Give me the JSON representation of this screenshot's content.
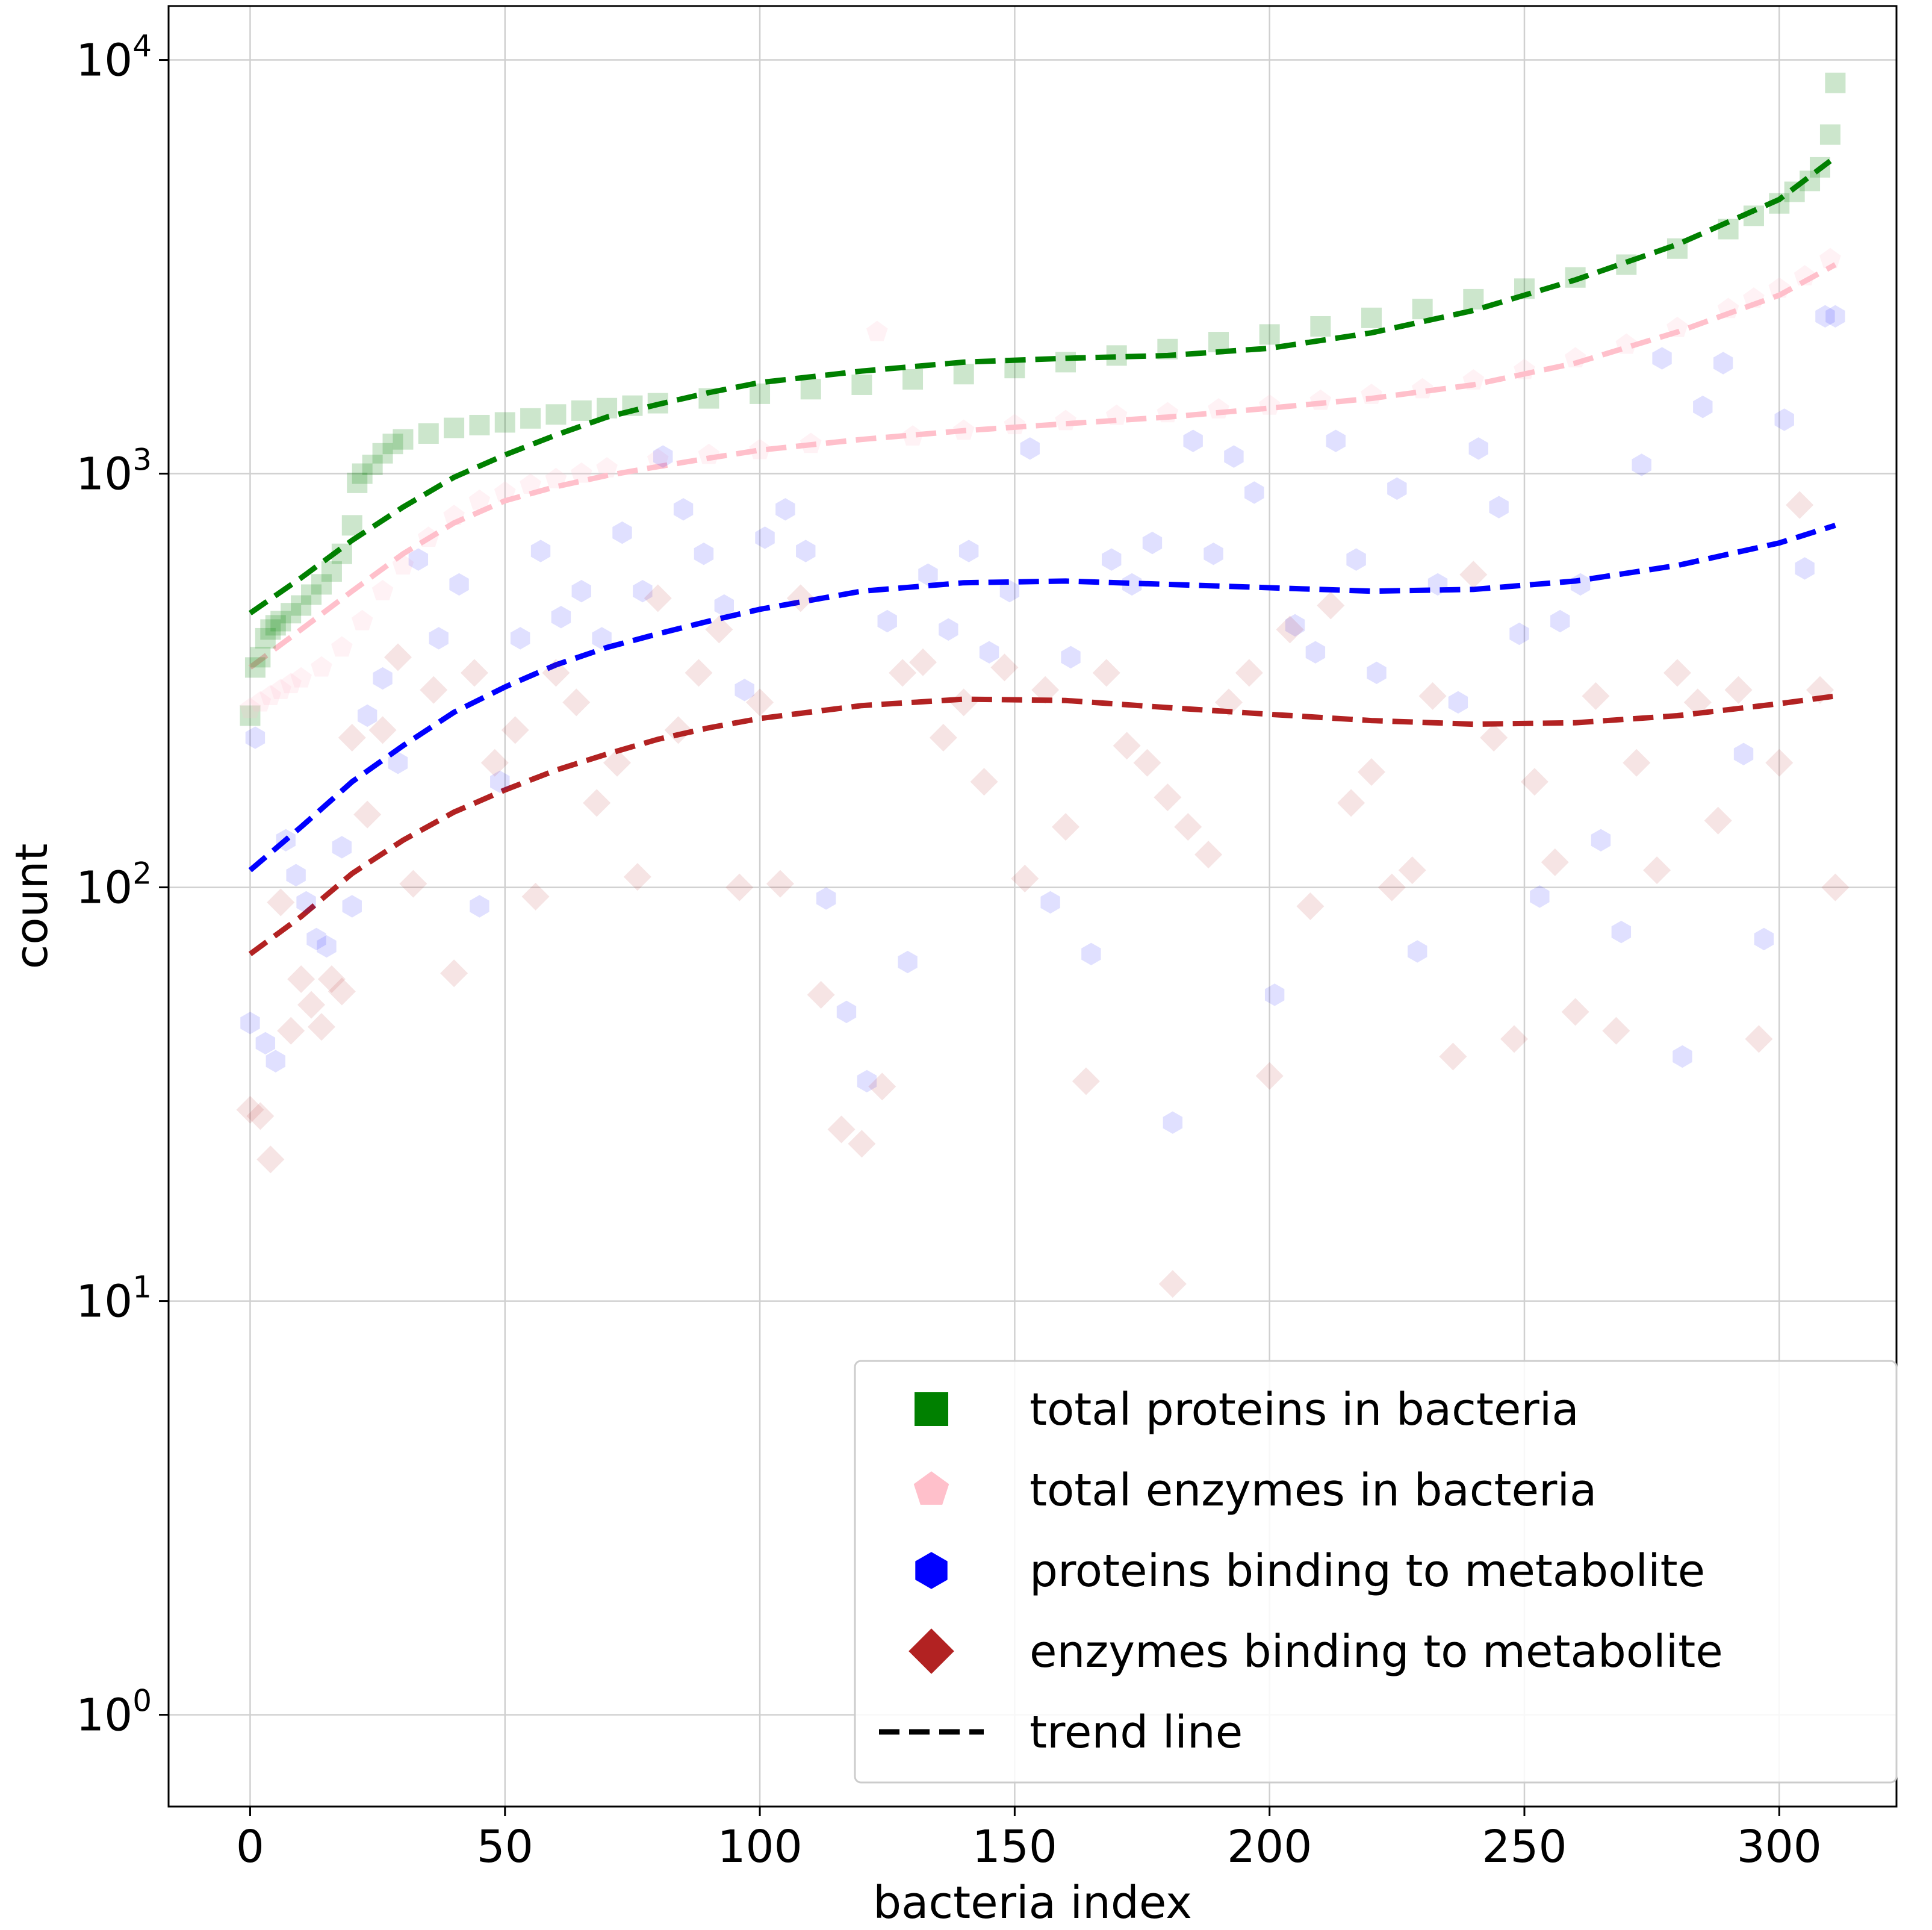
{
  "chart_data": {
    "type": "scatter",
    "title": "",
    "xlabel": "bacteria index",
    "ylabel": "count",
    "yscale": "log",
    "xlim": [
      -16,
      323
    ],
    "ylim": [
      0.6,
      13500
    ],
    "xticks": [
      0,
      50,
      100,
      150,
      200,
      250,
      300
    ],
    "xtick_labels": [
      "0",
      "50",
      "100",
      "150",
      "200",
      "250",
      "300"
    ],
    "yticks": [
      1,
      10,
      100,
      1000,
      10000
    ],
    "ytick_labels": [
      {
        "base": "10",
        "exp": "0"
      },
      {
        "base": "10",
        "exp": "1"
      },
      {
        "base": "10",
        "exp": "2"
      },
      {
        "base": "10",
        "exp": "3"
      },
      {
        "base": "10",
        "exp": "4"
      }
    ],
    "grid": true,
    "legend_position": "lower-right",
    "series": [
      {
        "name": "total proteins in bacteria",
        "marker": "square",
        "color": "#008000",
        "opacity": 0.2,
        "x": [
          0,
          1,
          2,
          3,
          4,
          5,
          6,
          8,
          10,
          12,
          14,
          16,
          18,
          20,
          21,
          22,
          24,
          26,
          28,
          30,
          35,
          40,
          45,
          50,
          55,
          60,
          65,
          70,
          75,
          80,
          90,
          100,
          110,
          120,
          130,
          140,
          150,
          160,
          170,
          180,
          190,
          200,
          210,
          220,
          230,
          240,
          250,
          260,
          270,
          280,
          290,
          295,
          300,
          303,
          306,
          308,
          310,
          311
        ],
        "y": [
          260,
          340,
          360,
          400,
          420,
          430,
          440,
          460,
          480,
          510,
          540,
          580,
          640,
          750,
          950,
          1000,
          1050,
          1120,
          1180,
          1210,
          1250,
          1290,
          1310,
          1330,
          1360,
          1390,
          1420,
          1440,
          1460,
          1480,
          1520,
          1560,
          1600,
          1640,
          1690,
          1740,
          1800,
          1860,
          1930,
          2000,
          2080,
          2170,
          2270,
          2380,
          2500,
          2640,
          2800,
          2980,
          3200,
          3500,
          3900,
          4200,
          4500,
          4800,
          5100,
          5500,
          6600,
          8800
        ]
      },
      {
        "name": "total enzymes in bacteria",
        "marker": "pentagon",
        "color": "#ffc0cb",
        "opacity": 0.2,
        "x": [
          0,
          2,
          4,
          6,
          8,
          10,
          14,
          18,
          22,
          26,
          30,
          35,
          40,
          45,
          50,
          55,
          60,
          65,
          70,
          80,
          90,
          100,
          110,
          123,
          130,
          140,
          150,
          160,
          170,
          180,
          190,
          200,
          210,
          220,
          230,
          240,
          250,
          260,
          270,
          280,
          290,
          295,
          300,
          305,
          310
        ],
        "y": [
          270,
          280,
          290,
          300,
          310,
          320,
          340,
          380,
          440,
          520,
          600,
          700,
          790,
          860,
          900,
          940,
          970,
          1000,
          1030,
          1080,
          1110,
          1140,
          1180,
          2200,
          1230,
          1270,
          1310,
          1340,
          1380,
          1400,
          1430,
          1460,
          1500,
          1550,
          1600,
          1680,
          1780,
          1900,
          2050,
          2250,
          2500,
          2650,
          2800,
          3000,
          3300
        ]
      },
      {
        "name": "proteins binding to metabolite",
        "marker": "hexagon",
        "color": "#0000ff",
        "opacity": 0.12,
        "x": [
          0,
          1,
          3,
          5,
          7,
          9,
          11,
          13,
          15,
          18,
          20,
          23,
          26,
          29,
          33,
          37,
          41,
          45,
          49,
          53,
          57,
          61,
          65,
          69,
          73,
          77,
          81,
          85,
          89,
          93,
          97,
          101,
          105,
          109,
          113,
          117,
          121,
          125,
          129,
          133,
          137,
          141,
          145,
          149,
          153,
          157,
          161,
          165,
          169,
          173,
          177,
          181,
          185,
          189,
          193,
          197,
          201,
          205,
          209,
          213,
          217,
          221,
          225,
          229,
          233,
          237,
          241,
          245,
          249,
          253,
          257,
          261,
          265,
          269,
          273,
          277,
          281,
          285,
          289,
          293,
          297,
          301,
          305,
          309,
          311
        ],
        "y": [
          47,
          230,
          42,
          38,
          130,
          107,
          92,
          75,
          72,
          125,
          90,
          260,
          320,
          200,
          620,
          400,
          540,
          90,
          180,
          400,
          650,
          450,
          520,
          400,
          720,
          520,
          1100,
          820,
          640,
          480,
          300,
          700,
          820,
          650,
          94,
          50,
          34,
          440,
          66,
          570,
          420,
          650,
          370,
          520,
          1150,
          92,
          360,
          69,
          620,
          540,
          680,
          27,
          1200,
          640,
          1100,
          900,
          55,
          430,
          370,
          1200,
          620,
          330,
          920,
          70,
          540,
          280,
          1150,
          830,
          410,
          95,
          440,
          540,
          130,
          78,
          1050,
          1900,
          39,
          1450,
          1850,
          210,
          75,
          1350,
          590,
          2400,
          2400
        ]
      },
      {
        "name": "enzymes binding to metabolite",
        "marker": "diamond",
        "color": "#b22222",
        "opacity": 0.12,
        "x": [
          0,
          2,
          4,
          6,
          8,
          10,
          12,
          14,
          16,
          18,
          20,
          23,
          26,
          29,
          32,
          36,
          40,
          44,
          48,
          52,
          56,
          60,
          64,
          68,
          72,
          76,
          80,
          84,
          88,
          92,
          96,
          100,
          104,
          108,
          112,
          116,
          120,
          124,
          128,
          132,
          136,
          140,
          144,
          148,
          152,
          156,
          160,
          164,
          168,
          172,
          176,
          180,
          181,
          184,
          188,
          192,
          196,
          200,
          204,
          208,
          212,
          216,
          220,
          224,
          228,
          232,
          236,
          240,
          244,
          248,
          252,
          256,
          260,
          264,
          268,
          272,
          276,
          280,
          284,
          288,
          292,
          296,
          300,
          304,
          308,
          311
        ],
        "y": [
          29,
          28,
          22,
          92,
          45,
          60,
          52,
          46,
          60,
          56,
          230,
          150,
          240,
          360,
          102,
          300,
          62,
          330,
          200,
          240,
          95,
          330,
          280,
          160,
          200,
          106,
          500,
          240,
          330,
          420,
          100,
          280,
          102,
          500,
          55,
          26,
          24,
          33,
          330,
          350,
          230,
          280,
          180,
          340,
          105,
          300,
          140,
          34,
          330,
          220,
          200,
          165,
          11,
          140,
          120,
          280,
          330,
          35,
          420,
          90,
          480,
          160,
          190,
          100,
          110,
          290,
          39,
          570,
          230,
          43,
          180,
          115,
          50,
          290,
          45,
          200,
          110,
          330,
          280,
          145,
          300,
          43,
          200,
          840,
          300,
          100
        ]
      }
    ],
    "trend_lines": [
      {
        "series": "total proteins in bacteria",
        "color": "#008000",
        "x": [
          0,
          10,
          20,
          30,
          40,
          50,
          60,
          70,
          80,
          90,
          100,
          120,
          140,
          160,
          180,
          200,
          220,
          240,
          260,
          280,
          300,
          310
        ],
        "y": [
          460,
          560,
          690,
          830,
          980,
          1110,
          1240,
          1370,
          1470,
          1570,
          1660,
          1770,
          1860,
          1900,
          1930,
          2010,
          2190,
          2480,
          2940,
          3580,
          4600,
          5700
        ]
      },
      {
        "series": "total enzymes in bacteria",
        "color": "#ffc0cb",
        "x": [
          0,
          10,
          20,
          30,
          40,
          50,
          60,
          70,
          80,
          90,
          100,
          120,
          140,
          160,
          180,
          200,
          220,
          240,
          260,
          280,
          300,
          311
        ],
        "y": [
          340,
          420,
          520,
          640,
          760,
          860,
          930,
          990,
          1040,
          1090,
          1140,
          1210,
          1270,
          1320,
          1370,
          1440,
          1520,
          1640,
          1850,
          2200,
          2700,
          3200
        ]
      },
      {
        "series": "proteins binding to metabolite",
        "color": "#0000ff",
        "x": [
          0,
          10,
          20,
          30,
          40,
          50,
          60,
          70,
          80,
          90,
          100,
          120,
          140,
          160,
          180,
          200,
          220,
          240,
          260,
          280,
          300,
          311
        ],
        "y": [
          110,
          140,
          180,
          220,
          265,
          305,
          345,
          380,
          410,
          440,
          470,
          520,
          545,
          550,
          540,
          530,
          520,
          525,
          550,
          600,
          680,
          750
        ]
      },
      {
        "series": "enzymes binding to metabolite",
        "color": "#b22222",
        "x": [
          0,
          10,
          20,
          30,
          40,
          50,
          60,
          70,
          80,
          90,
          100,
          120,
          140,
          160,
          180,
          200,
          220,
          240,
          260,
          280,
          300,
          311
        ],
        "y": [
          69,
          85,
          108,
          130,
          152,
          172,
          192,
          210,
          228,
          243,
          256,
          275,
          285,
          283,
          272,
          262,
          253,
          248,
          250,
          260,
          278,
          290
        ]
      }
    ],
    "legend": [
      {
        "label": "total proteins in bacteria",
        "marker": "square",
        "color": "#008000"
      },
      {
        "label": "total enzymes in bacteria",
        "marker": "pentagon",
        "color": "#ffc0cb"
      },
      {
        "label": "proteins binding to metabolite",
        "marker": "hexagon",
        "color": "#0000ff"
      },
      {
        "label": "enzymes binding to metabolite",
        "marker": "diamond",
        "color": "#b22222"
      },
      {
        "label": "trend line",
        "marker": "dashed-line",
        "color": "#000000"
      }
    ]
  }
}
